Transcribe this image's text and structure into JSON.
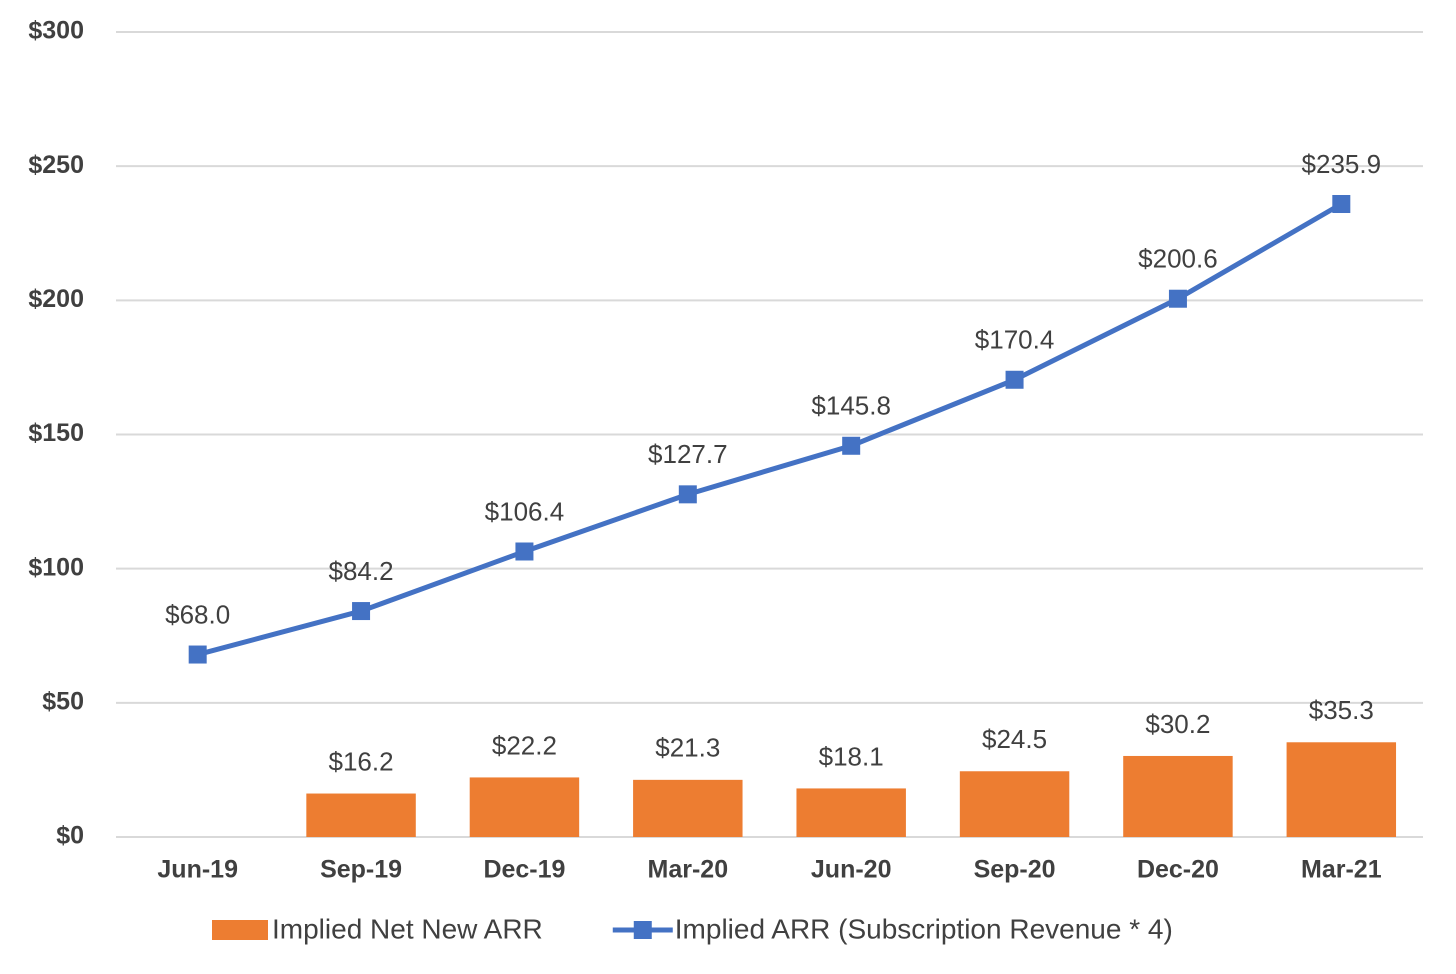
{
  "chart_data": {
    "type": "combo",
    "categories": [
      "Jun-19",
      "Sep-19",
      "Dec-19",
      "Mar-20",
      "Jun-20",
      "Sep-20",
      "Dec-20",
      "Mar-21"
    ],
    "series": [
      {
        "name": "Implied Net New ARR",
        "type": "bar",
        "color": "#ed7d31",
        "values": [
          null,
          16.2,
          22.2,
          21.3,
          18.1,
          24.5,
          30.2,
          35.3
        ],
        "value_labels": [
          null,
          "$16.2",
          "$22.2",
          "$21.3",
          "$18.1",
          "$24.5",
          "$30.2",
          "$35.3"
        ]
      },
      {
        "name": "Implied ARR (Subscription Revenue * 4)",
        "type": "line",
        "color": "#4472c4",
        "values": [
          68.0,
          84.2,
          106.4,
          127.7,
          145.8,
          170.4,
          200.6,
          235.9
        ],
        "value_labels": [
          "$68.0",
          "$84.2",
          "$106.4",
          "$127.7",
          "$145.8",
          "$170.4",
          "$200.6",
          "$235.9"
        ]
      }
    ],
    "ylim": [
      0,
      300
    ],
    "yticks": [
      {
        "value": 0,
        "label": "$0"
      },
      {
        "value": 50,
        "label": "$50"
      },
      {
        "value": 100,
        "label": "$100"
      },
      {
        "value": 150,
        "label": "$150"
      },
      {
        "value": 200,
        "label": "$200"
      },
      {
        "value": 250,
        "label": "$250"
      },
      {
        "value": 300,
        "label": "$300"
      }
    ],
    "grid": true,
    "legend": "bottom"
  }
}
